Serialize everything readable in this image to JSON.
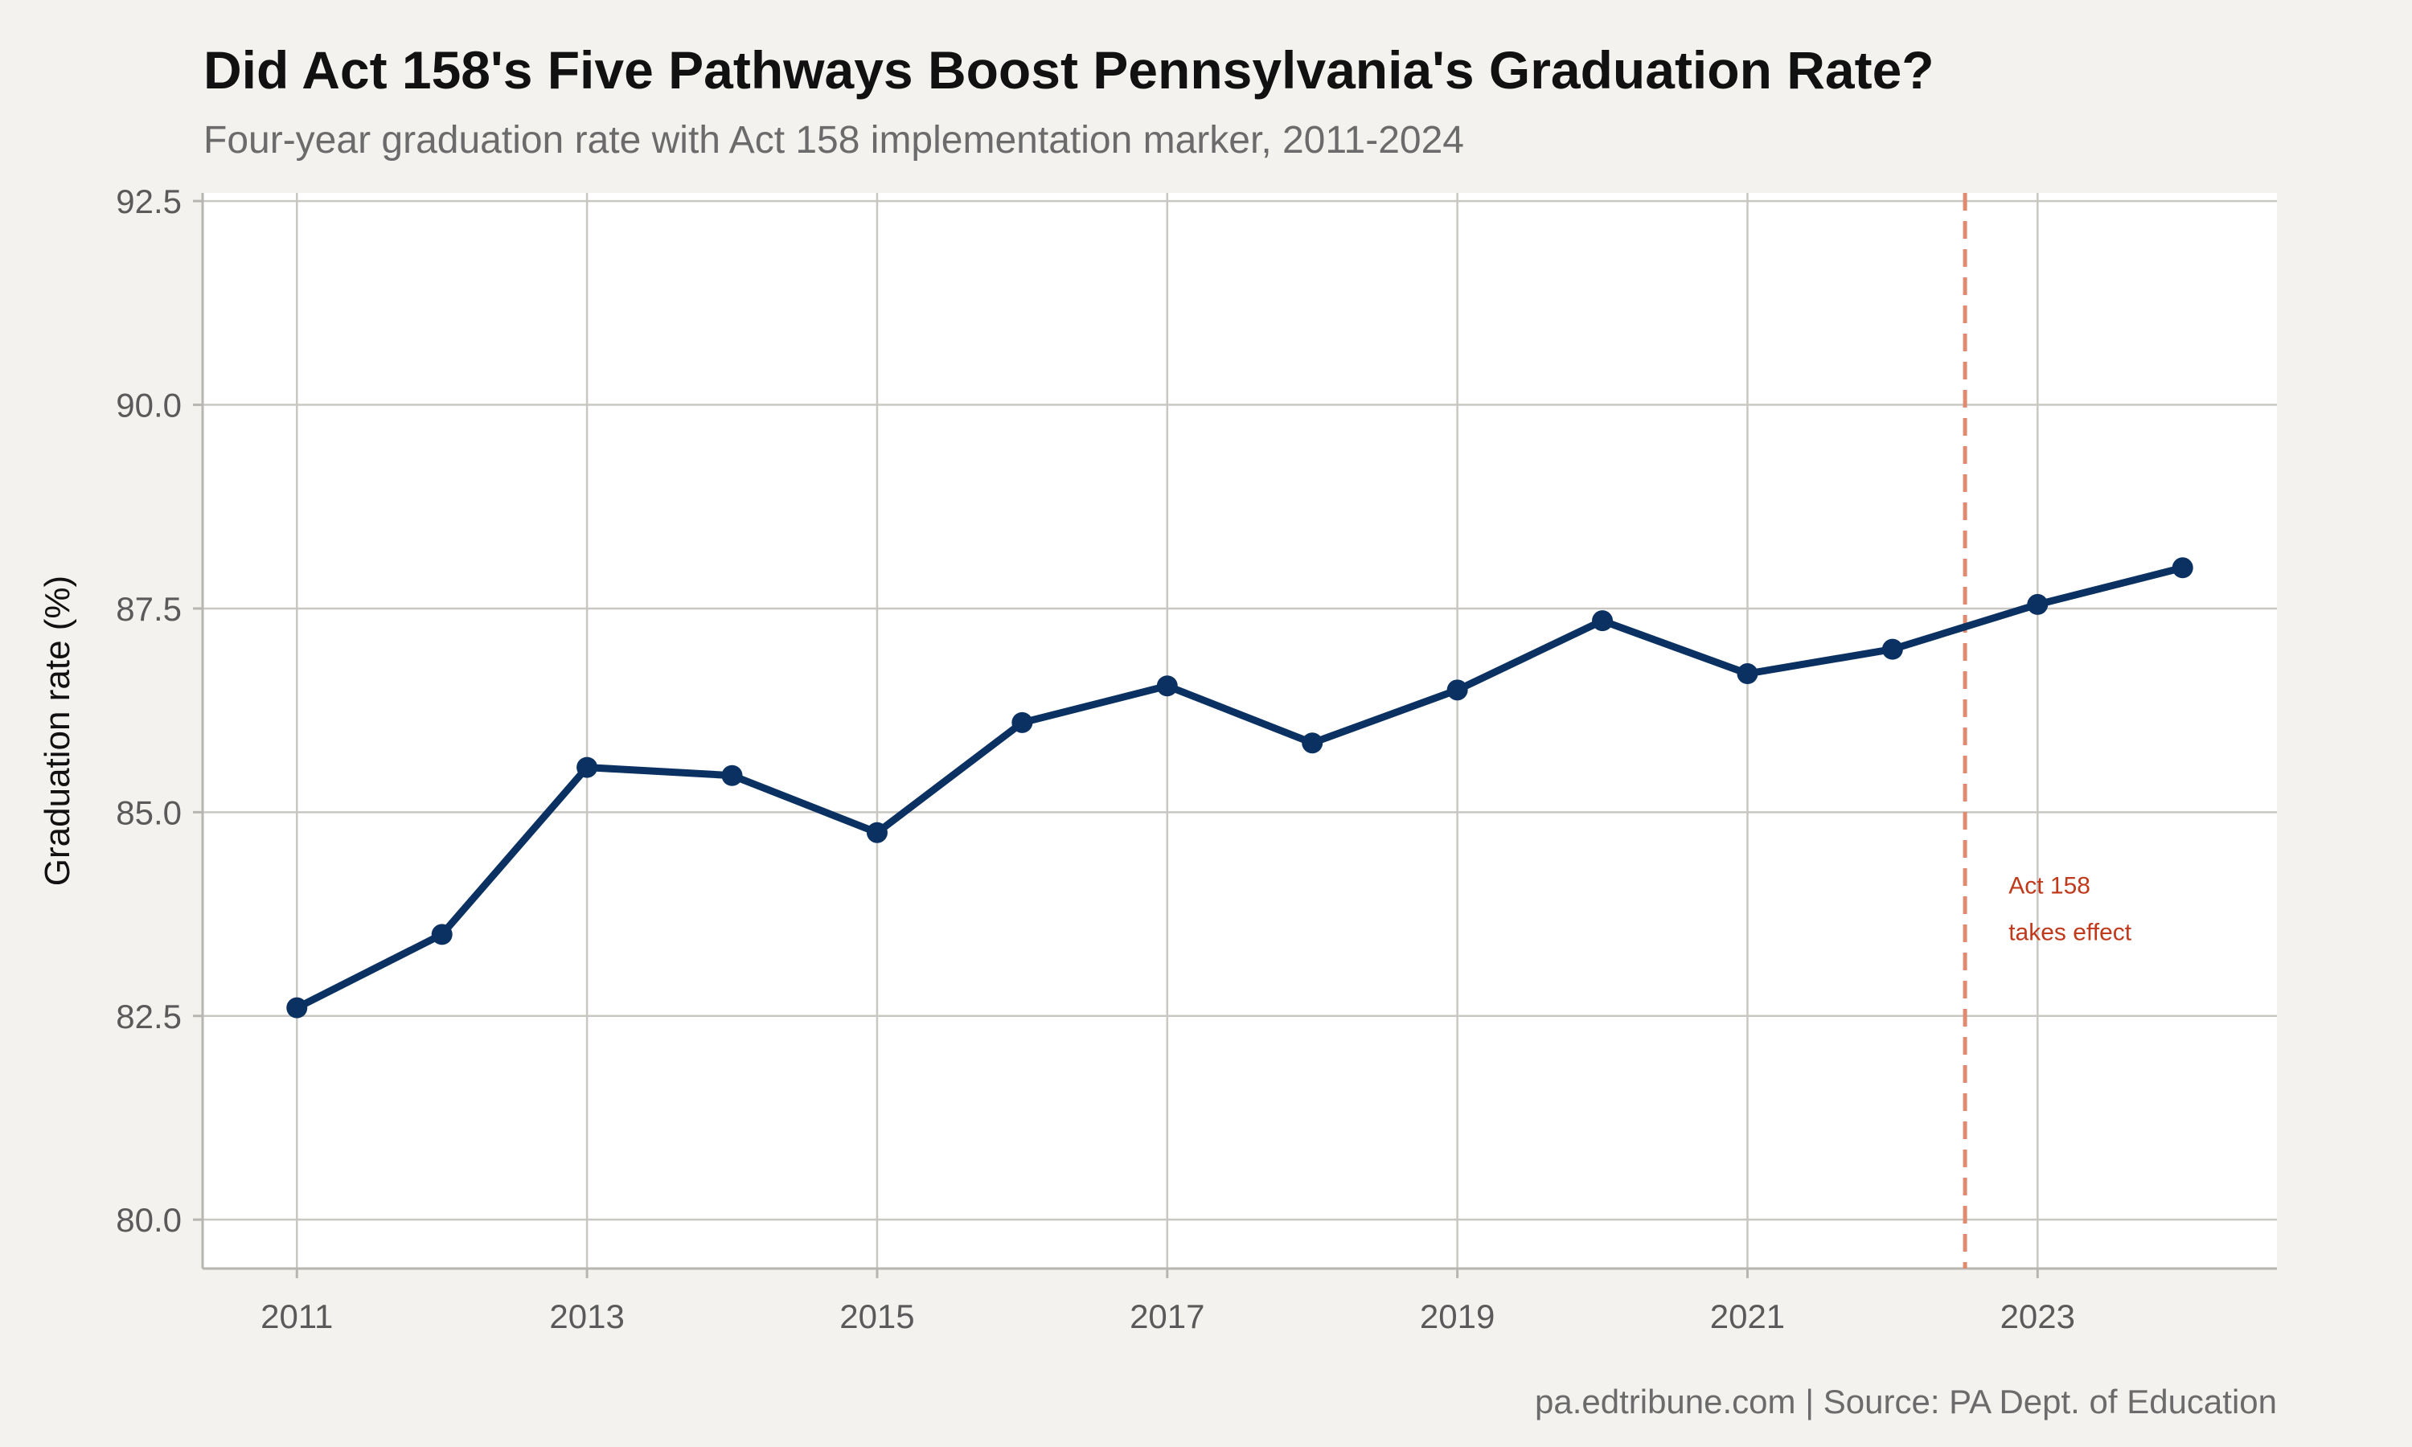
{
  "chart_data": {
    "type": "line",
    "title": "Did Act 158's Five Pathways Boost Pennsylvania's Graduation Rate?",
    "subtitle": "Four-year graduation rate with Act 158 implementation marker, 2011-2024",
    "xlabel": "",
    "ylabel": "Graduation rate (%)",
    "caption": "pa.edtribune.com | Source: PA Dept. of Education",
    "xlim": [
      2010.35,
      2024.65
    ],
    "ylim": [
      79.4,
      92.6
    ],
    "x_ticks": [
      2011,
      2013,
      2015,
      2017,
      2019,
      2021,
      2023
    ],
    "x_tick_labels": [
      "2011",
      "2013",
      "2015",
      "2017",
      "2019",
      "2021",
      "2023"
    ],
    "y_ticks": [
      80.0,
      82.5,
      85.0,
      87.5,
      90.0,
      92.5
    ],
    "y_tick_labels": [
      "80.0",
      "82.5",
      "85.0",
      "87.5",
      "90.0",
      "92.5"
    ],
    "grid": true,
    "x": [
      2011,
      2012,
      2013,
      2014,
      2015,
      2016,
      2017,
      2018,
      2019,
      2020,
      2021,
      2022,
      2023,
      2024
    ],
    "series": [
      {
        "values": [
          82.6,
          83.5,
          85.55,
          85.45,
          84.75,
          86.1,
          86.55,
          85.85,
          86.5,
          87.35,
          86.7,
          87.0,
          87.55,
          88.0
        ],
        "color": "#0a3161"
      }
    ],
    "reference_line": {
      "x": 2022.5,
      "color": "#e08a70",
      "style": "dashed"
    },
    "annotation": {
      "lines": [
        "Act 158",
        "takes effect"
      ],
      "x": 2022.8,
      "y": 84.0,
      "color": "#c0391b"
    },
    "colors": {
      "background": "#f4f2ee",
      "panel": "#ffffff",
      "gridline": "#c9c7c2"
    }
  }
}
